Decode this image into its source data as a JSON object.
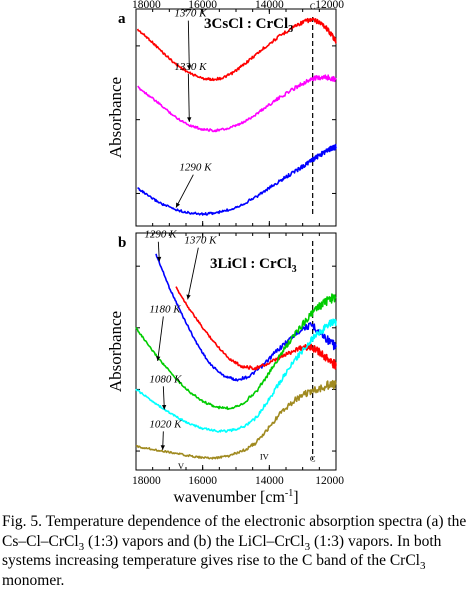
{
  "chart_data": [
    {
      "type": "line",
      "panel_label": "a",
      "title": "3CsCl : CrCl",
      "title_sub": "3",
      "xlabel": "",
      "ylabel": "Absorbance",
      "xlim": [
        18000,
        12000
      ],
      "x_ticks": [
        18000,
        16000,
        14000,
        12000
      ],
      "x_tick_labels": [
        "18000",
        "16000",
        "14000",
        "12000"
      ],
      "series": [
        {
          "name": "1370 K",
          "color": "#ff0000",
          "x": [
            17950,
            17600,
            17200,
            16800,
            16400,
            16000,
            15700,
            15400,
            15100,
            14800,
            14400,
            14000,
            13600,
            13200,
            12900,
            12700,
            12500,
            12300,
            12100,
            12000
          ],
          "y": [
            0.905,
            0.86,
            0.8,
            0.745,
            0.705,
            0.68,
            0.675,
            0.682,
            0.705,
            0.74,
            0.79,
            0.84,
            0.885,
            0.925,
            0.945,
            0.95,
            0.94,
            0.915,
            0.875,
            0.85
          ]
        },
        {
          "name": "1330 K",
          "color": "#ff00ff",
          "x": [
            17950,
            17600,
            17200,
            16800,
            16400,
            16000,
            15600,
            15200,
            14800,
            14400,
            14000,
            13600,
            13200,
            12900,
            12700,
            12500,
            12300,
            12100,
            12000
          ],
          "y": [
            0.64,
            0.6,
            0.55,
            0.5,
            0.465,
            0.445,
            0.44,
            0.45,
            0.475,
            0.515,
            0.56,
            0.6,
            0.64,
            0.665,
            0.678,
            0.685,
            0.686,
            0.68,
            0.675
          ]
        },
        {
          "name": "1290 K",
          "color": "#0000ff",
          "x": [
            17950,
            17600,
            17200,
            16800,
            16400,
            16000,
            15600,
            15200,
            14800,
            14400,
            14000,
            13600,
            13200,
            12900,
            12700,
            12500,
            12300,
            12100,
            12000
          ],
          "y": [
            0.175,
            0.135,
            0.1,
            0.075,
            0.06,
            0.055,
            0.06,
            0.075,
            0.1,
            0.135,
            0.175,
            0.215,
            0.255,
            0.285,
            0.305,
            0.325,
            0.345,
            0.36,
            0.365
          ]
        }
      ],
      "annotations": [
        {
          "text": "1370 K",
          "x": 16850,
          "y": 0.965,
          "arrow_to": [
            16400,
            0.72
          ]
        },
        {
          "text": "1330 K",
          "x": 16850,
          "y": 0.72,
          "arrow_to": [
            16400,
            0.48
          ]
        },
        {
          "text": "1290 K",
          "x": 16700,
          "y": 0.255,
          "arrow_to": [
            16800,
            0.085
          ]
        },
        {
          "text": "C",
          "x": 12700,
          "y": 1.0
        }
      ],
      "reference_line": {
        "x": 12700,
        "style": "dashed",
        "label": "C"
      }
    },
    {
      "type": "line",
      "panel_label": "b",
      "title": "3LiCl : CrCl",
      "title_sub": "3",
      "xlabel": "wavenumber [cm",
      "xlabel_sup": "-1",
      "xlabel_end": "]",
      "ylabel": "Absorbance",
      "xlim": [
        18000,
        12000
      ],
      "x_ticks": [
        18000,
        16000,
        14000,
        12000
      ],
      "x_tick_labels": [
        "18000",
        "16000",
        "14000",
        "12000"
      ],
      "series": [
        {
          "name": "1290 K",
          "color": "#0000ff",
          "x": [
            17400,
            17000,
            16600,
            16200,
            15800,
            15400,
            15000,
            14600,
            14200,
            13800,
            13400,
            13000,
            12700,
            12400,
            12100,
            12000
          ],
          "y": [
            0.91,
            0.77,
            0.65,
            0.54,
            0.45,
            0.4,
            0.38,
            0.395,
            0.44,
            0.5,
            0.55,
            0.6,
            0.61,
            0.57,
            0.53,
            0.52
          ]
        },
        {
          "name": "1370 K",
          "color": "#ff0000",
          "x": [
            16800,
            16400,
            16000,
            15600,
            15200,
            14800,
            14400,
            14000,
            13600,
            13200,
            12900,
            12700,
            12500,
            12300,
            12100,
            12000
          ],
          "y": [
            0.77,
            0.68,
            0.6,
            0.53,
            0.47,
            0.435,
            0.43,
            0.45,
            0.48,
            0.51,
            0.52,
            0.515,
            0.5,
            0.475,
            0.45,
            0.44
          ]
        },
        {
          "name": "1180 K",
          "color": "#00cc00",
          "x": [
            18000,
            17600,
            17200,
            16800,
            16400,
            16000,
            15600,
            15200,
            14800,
            14400,
            14000,
            13600,
            13200,
            12800,
            12500,
            12200,
            12000
          ],
          "y": [
            0.6,
            0.52,
            0.45,
            0.385,
            0.33,
            0.29,
            0.265,
            0.26,
            0.28,
            0.33,
            0.41,
            0.5,
            0.58,
            0.65,
            0.69,
            0.72,
            0.73
          ]
        },
        {
          "name": "1080 K",
          "color": "#00ffff",
          "x": [
            18000,
            17600,
            17200,
            16800,
            16400,
            16000,
            15600,
            15200,
            14800,
            14400,
            14000,
            13600,
            13200,
            12800,
            12500,
            12200,
            12000
          ],
          "y": [
            0.34,
            0.3,
            0.26,
            0.225,
            0.195,
            0.175,
            0.165,
            0.165,
            0.18,
            0.22,
            0.3,
            0.39,
            0.47,
            0.54,
            0.58,
            0.615,
            0.63
          ]
        },
        {
          "name": "1020 K",
          "color": "#a08a20",
          "x": [
            18000,
            17600,
            17200,
            16800,
            16400,
            16000,
            15600,
            15200,
            14800,
            14400,
            14000,
            13600,
            13200,
            12800,
            12500,
            12200,
            12000
          ],
          "y": [
            0.1,
            0.09,
            0.08,
            0.07,
            0.06,
            0.052,
            0.05,
            0.06,
            0.08,
            0.115,
            0.18,
            0.25,
            0.3,
            0.33,
            0.345,
            0.36,
            0.36
          ]
        }
      ],
      "annotations": [
        {
          "text": "1290 K",
          "x": 17750,
          "y": 0.98,
          "arrow_to": [
            17300,
            0.88
          ]
        },
        {
          "text": "1370 K",
          "x": 16550,
          "y": 0.955,
          "arrow_to": [
            16450,
            0.72
          ]
        },
        {
          "text": "1180 K",
          "x": 17600,
          "y": 0.665,
          "arrow_to": [
            17350,
            0.46
          ]
        },
        {
          "text": "1080 K",
          "x": 17600,
          "y": 0.37,
          "arrow_to": [
            17150,
            0.255
          ]
        },
        {
          "text": "1020 K",
          "x": 17600,
          "y": 0.18,
          "arrow_to": [
            17200,
            0.085
          ]
        },
        {
          "text": "IV",
          "x": 14150,
          "y": 0.045
        },
        {
          "text": "V",
          "x": 16650,
          "y": 0.005
        },
        {
          "text": "C",
          "x": 12700,
          "y": 0.035
        }
      ],
      "reference_line": {
        "x": 12700,
        "style": "dashed",
        "label": "C"
      }
    }
  ],
  "caption": {
    "p1": "Fig. 5. Temperature dependence of the electronic absorption spectra (a) the Cs–Cl–CrCl",
    "p2": " (1:3) vapors and (b) the LiCl–CrCl",
    "p3": " (1:3) vapors. In both systems increasing temperature gives rise to the C band of the CrCl",
    "p4": " monomer.",
    "sub": "3"
  }
}
